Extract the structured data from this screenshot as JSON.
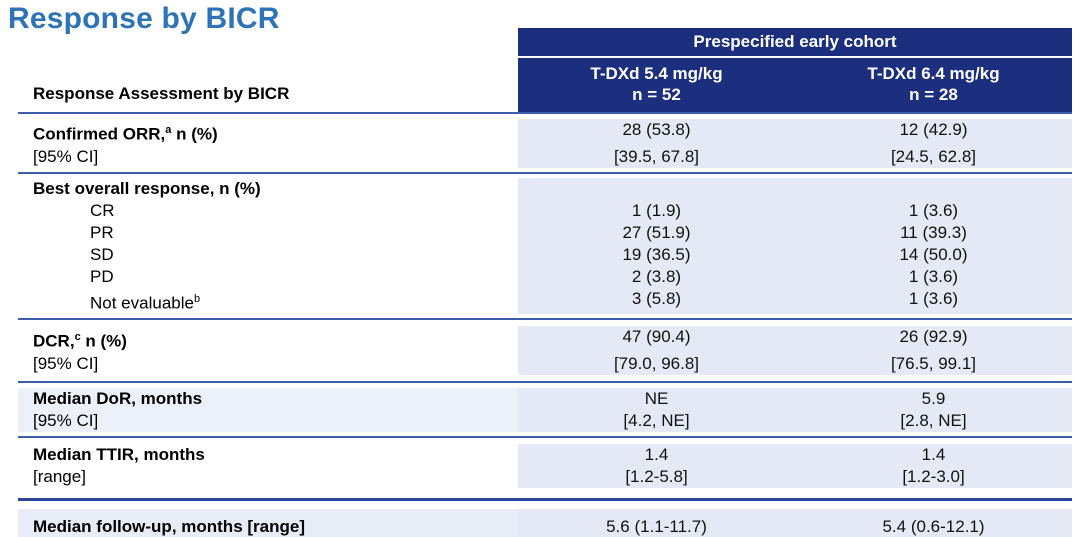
{
  "slide": {
    "title": "Response by BICR",
    "colors": {
      "title_blue": "#2e73b8",
      "header_navy": "#1c2e7e",
      "data_lavender": "#e4e9f5",
      "separator_blue": "#3d5dab"
    }
  },
  "table": {
    "left_header": "Response Assessment by BICR",
    "group_header": "Prespecified early cohort",
    "columns": [
      {
        "line1": "T-DXd 5.4 mg/kg",
        "line2": "n = 52"
      },
      {
        "line1": "T-DXd 6.4 mg/kg",
        "line2": "n = 28"
      }
    ],
    "rows": [
      {
        "label": {
          "pre": "Confirmed ORR,",
          "sup": "a",
          "post": " n (%)"
        },
        "values": [
          "28 (53.8)",
          "12 (42.9)"
        ]
      },
      {
        "label": {
          "pre": "[95% CI]",
          "sup": "",
          "post": ""
        },
        "values": [
          "[39.5, 67.8]",
          "[24.5, 62.8]"
        ]
      },
      {
        "label": {
          "pre": "Best overall response, n (%)",
          "sup": "",
          "post": ""
        },
        "values": [
          "",
          ""
        ]
      },
      {
        "label": {
          "pre": "CR",
          "sup": "",
          "post": ""
        },
        "values": [
          "1 (1.9)",
          "1 (3.6)"
        ]
      },
      {
        "label": {
          "pre": "PR",
          "sup": "",
          "post": ""
        },
        "values": [
          "27 (51.9)",
          "11 (39.3)"
        ]
      },
      {
        "label": {
          "pre": "SD",
          "sup": "",
          "post": ""
        },
        "values": [
          "19 (36.5)",
          "14 (50.0)"
        ]
      },
      {
        "label": {
          "pre": "PD",
          "sup": "",
          "post": ""
        },
        "values": [
          "2 (3.8)",
          "1 (3.6)"
        ]
      },
      {
        "label": {
          "pre": "Not evaluable",
          "sup": "b",
          "post": ""
        },
        "values": [
          "3 (5.8)",
          "1 (3.6)"
        ]
      },
      {
        "label": {
          "pre": "DCR,",
          "sup": "c",
          "post": " n (%)"
        },
        "values": [
          "47 (90.4)",
          "26 (92.9)"
        ]
      },
      {
        "label": {
          "pre": "[95% CI]",
          "sup": "",
          "post": ""
        },
        "values": [
          "[79.0, 96.8]",
          "[76.5, 99.1]"
        ]
      },
      {
        "label": {
          "pre": "Median DoR, months",
          "sup": "",
          "post": ""
        },
        "values": [
          "NE",
          "5.9"
        ]
      },
      {
        "label": {
          "pre": "[95% CI]",
          "sup": "",
          "post": ""
        },
        "values": [
          "[4.2, NE]",
          "[2.8, NE]"
        ]
      },
      {
        "label": {
          "pre": "Median TTIR, months",
          "sup": "",
          "post": ""
        },
        "values": [
          "1.4",
          "1.4"
        ]
      },
      {
        "label": {
          "pre": "[range]",
          "sup": "",
          "post": ""
        },
        "values": [
          "[1.2-5.8]",
          "[1.2-3.0]"
        ]
      }
    ],
    "footer_row": {
      "label": "Median follow-up, months [range]",
      "values": [
        "5.6 (1.1-11.7)",
        "5.4 (0.6-12.1)"
      ]
    }
  }
}
